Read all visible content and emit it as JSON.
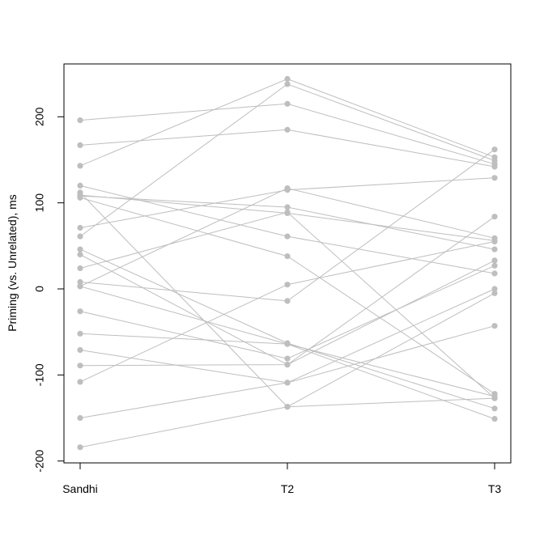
{
  "chart_data": {
    "type": "line",
    "title": "",
    "xlabel": "",
    "ylabel": "Priming (vs. Unrelated), ms",
    "categories": [
      "Sandhi",
      "T2",
      "T3"
    ],
    "yticks": [
      -200,
      -100,
      0,
      100,
      200
    ],
    "ytick_labels": [
      "-200",
      "-100",
      "0",
      "100",
      "200"
    ],
    "ylim": [
      -200,
      255
    ],
    "grid": false,
    "line_color": "#bebebe",
    "point_color": "#bebebe",
    "series": [
      {
        "values": [
          196,
          215,
          145
        ]
      },
      {
        "values": [
          167,
          185,
          142
        ]
      },
      {
        "values": [
          143,
          244,
          153
        ]
      },
      {
        "values": [
          120,
          61,
          18
        ]
      },
      {
        "values": [
          112,
          -137,
          -5
        ]
      },
      {
        "values": [
          109,
          88,
          56
        ]
      },
      {
        "values": [
          108,
          95,
          46
        ]
      },
      {
        "values": [
          106,
          38,
          -122
        ]
      },
      {
        "values": [
          71,
          115,
          129
        ]
      },
      {
        "values": [
          61,
          238,
          149
        ]
      },
      {
        "values": [
          46,
          -63,
          -139
        ]
      },
      {
        "values": [
          40,
          -88,
          33
        ]
      },
      {
        "values": [
          24,
          89,
          -127
        ]
      },
      {
        "values": [
          8,
          -14,
          162
        ]
      },
      {
        "values": [
          3,
          117,
          59
        ]
      },
      {
        "values": [
          3,
          -64,
          -125
        ]
      },
      {
        "values": [
          -26,
          -81,
          27
        ]
      },
      {
        "values": [
          -52,
          -64,
          -151
        ]
      },
      {
        "values": [
          -71,
          -109,
          0
        ]
      },
      {
        "values": [
          -89,
          -88,
          84
        ]
      },
      {
        "values": [
          -108,
          5,
          55
        ]
      },
      {
        "values": [
          -150,
          -109,
          -43
        ]
      },
      {
        "values": [
          -184,
          -137,
          -127
        ]
      }
    ]
  }
}
